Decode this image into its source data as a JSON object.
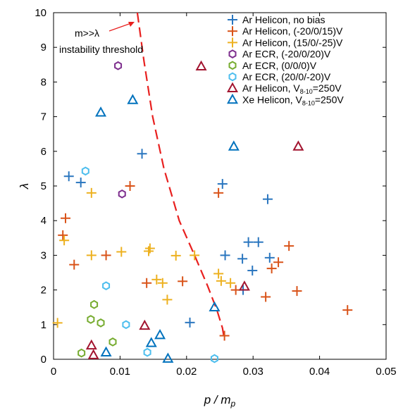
{
  "chart_data": {
    "type": "scatter",
    "xlabel": "p / m_p",
    "ylabel": "λ",
    "xlim": [
      0,
      0.05
    ],
    "ylim": [
      0,
      10
    ],
    "x_ticks": [
      "0",
      "0.01",
      "0.02",
      "0.03",
      "0.04",
      "0.05"
    ],
    "y_ticks": [
      "0",
      "1",
      "2",
      "3",
      "4",
      "5",
      "6",
      "7",
      "8",
      "9",
      "10"
    ],
    "grid": false,
    "legend_position": "top-right",
    "annotation": {
      "line1": "m>>λ",
      "line2": "instability threshold",
      "color": "#e8201f"
    },
    "threshold_curve": {
      "color": "#e8201f",
      "style": "dashed",
      "points": [
        [
          0.0126,
          10
        ],
        [
          0.0136,
          8.6
        ],
        [
          0.0149,
          7.0
        ],
        [
          0.0166,
          5.5
        ],
        [
          0.0189,
          4.0
        ],
        [
          0.0212,
          3.0
        ],
        [
          0.0232,
          2.1
        ],
        [
          0.0246,
          1.4
        ],
        [
          0.0254,
          0.9
        ],
        [
          0.0257,
          0.55
        ]
      ]
    },
    "series": [
      {
        "name": "Ar Helicon, no bias",
        "marker": "plus",
        "color": "#2a76bf",
        "points": [
          [
            0.0023,
            5.28
          ],
          [
            0.0041,
            5.1
          ],
          [
            0.0133,
            5.93
          ],
          [
            0.0254,
            5.06
          ],
          [
            0.0322,
            4.62
          ],
          [
            0.0258,
            3.0
          ],
          [
            0.0284,
            2.9
          ],
          [
            0.0293,
            3.38
          ],
          [
            0.0308,
            3.38
          ],
          [
            0.0325,
            2.93
          ],
          [
            0.0299,
            2.56
          ],
          [
            0.0285,
            2.0
          ],
          [
            0.0205,
            1.06
          ]
        ]
      },
      {
        "name": "Ar Helicon, (-20/0/15)V",
        "marker": "plus",
        "color": "#d95319",
        "points": [
          [
            0.0014,
            3.58
          ],
          [
            0.0018,
            4.07
          ],
          [
            0.0031,
            2.73
          ],
          [
            0.0115,
            5.0
          ],
          [
            0.0248,
            4.8
          ],
          [
            0.0079,
            3.0
          ],
          [
            0.014,
            2.2
          ],
          [
            0.0194,
            2.25
          ],
          [
            0.0274,
            2.0
          ],
          [
            0.0319,
            1.8
          ],
          [
            0.0328,
            2.62
          ],
          [
            0.0338,
            2.8
          ],
          [
            0.0354,
            3.27
          ],
          [
            0.0366,
            1.97
          ],
          [
            0.0442,
            1.42
          ],
          [
            0.0257,
            0.68
          ]
        ]
      },
      {
        "name": "Ar Helicon, (15/0/-25)V",
        "marker": "plus",
        "color": "#edb120",
        "points": [
          [
            0.0016,
            3.43
          ],
          [
            0.0006,
            1.05
          ],
          [
            0.0057,
            4.8
          ],
          [
            0.0057,
            3.0
          ],
          [
            0.0102,
            3.1
          ],
          [
            0.0143,
            3.12
          ],
          [
            0.0145,
            3.2
          ],
          [
            0.0155,
            2.3
          ],
          [
            0.0164,
            2.2
          ],
          [
            0.0184,
            2.99
          ],
          [
            0.0212,
            3.0
          ],
          [
            0.0248,
            2.47
          ],
          [
            0.0252,
            2.26
          ],
          [
            0.0266,
            2.2
          ],
          [
            0.0171,
            1.72
          ]
        ]
      },
      {
        "name": "Ar ECR, (-20/0/20)V",
        "marker": "hexagon",
        "color": "#7e2f8e",
        "points": [
          [
            0.0097,
            8.47
          ],
          [
            0.0103,
            4.77
          ]
        ]
      },
      {
        "name": "Ar ECR, (0/0/0)V",
        "marker": "hexagon",
        "color": "#77ac30",
        "points": [
          [
            0.0061,
            1.58
          ],
          [
            0.0056,
            1.15
          ],
          [
            0.0071,
            1.05
          ],
          [
            0.0089,
            0.5
          ],
          [
            0.0042,
            0.18
          ]
        ]
      },
      {
        "name": "Ar ECR, (20/0/-20)V",
        "marker": "hexagon",
        "color": "#4dbeee",
        "points": [
          [
            0.0048,
            5.43
          ],
          [
            0.0079,
            2.12
          ],
          [
            0.0109,
            1.0
          ],
          [
            0.0141,
            0.2
          ],
          [
            0.0242,
            0.02
          ]
        ]
      },
      {
        "name": "Ar Helicon, V_8-10=250V",
        "marker": "triangle",
        "color": "#a2142f",
        "points": [
          [
            0.0222,
            8.45
          ],
          [
            0.0368,
            6.14
          ],
          [
            0.0287,
            2.1
          ],
          [
            0.0137,
            0.97
          ],
          [
            0.0057,
            0.4
          ],
          [
            0.006,
            0.12
          ]
        ]
      },
      {
        "name": "Xe Helicon, V_8-10=250V",
        "marker": "triangle",
        "color": "#0072bd",
        "points": [
          [
            0.0119,
            7.48
          ],
          [
            0.0071,
            7.12
          ],
          [
            0.0271,
            6.14
          ],
          [
            0.0242,
            1.5
          ],
          [
            0.016,
            0.7
          ],
          [
            0.0147,
            0.47
          ],
          [
            0.0079,
            0.2
          ],
          [
            0.0172,
            0.02
          ]
        ]
      }
    ]
  }
}
